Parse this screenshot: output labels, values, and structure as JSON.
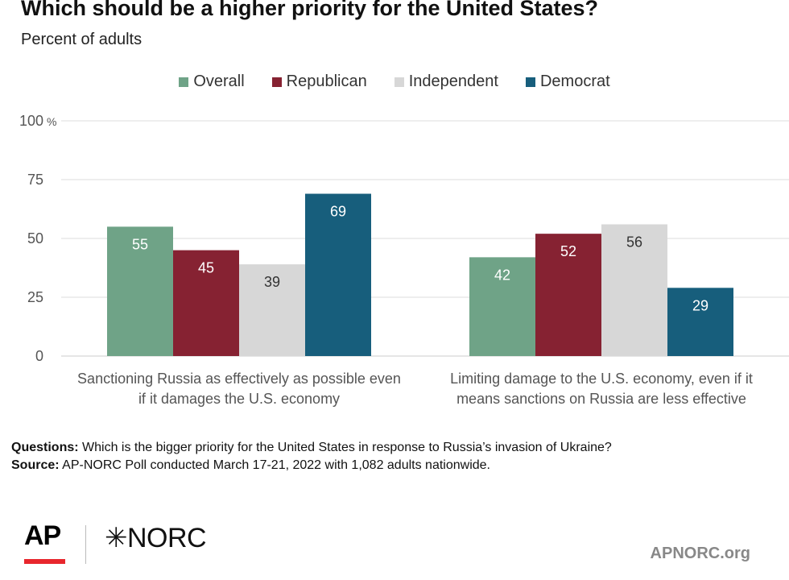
{
  "header": {
    "title": "Which should be a higher priority for the United States?",
    "subtitle": "Percent of adults"
  },
  "chart_data": {
    "type": "bar",
    "title": "Which should be a higher priority for the United States?",
    "subtitle": "Percent of adults",
    "categories": [
      [
        "Sanctioning Russia as effectively as possible even",
        "if it damages the U.S. economy"
      ],
      [
        "Limiting damage to the U.S. economy, even if it",
        "means sanctions on Russia are less effective"
      ]
    ],
    "series": [
      {
        "name": "Overall",
        "color": "#6fa387",
        "label_color": "#ffffff",
        "values": [
          55,
          42
        ]
      },
      {
        "name": "Republican",
        "color": "#862232",
        "label_color": "#ffffff",
        "values": [
          45,
          52
        ]
      },
      {
        "name": "Independent",
        "color": "#d7d7d7",
        "label_color": "#333333",
        "values": [
          39,
          56
        ]
      },
      {
        "name": "Democrat",
        "color": "#175e7c",
        "label_color": "#ffffff",
        "values": [
          69,
          29
        ]
      }
    ],
    "yticks": [
      "0",
      "25",
      "50",
      "75",
      "100"
    ],
    "ytick_values": [
      0,
      25,
      50,
      75,
      100
    ],
    "yunit": "%",
    "ylim": [
      0,
      100
    ],
    "xlabel": "",
    "ylabel": "",
    "grid": true,
    "legend": "top-center"
  },
  "notes": {
    "questions_label": "Questions:",
    "questions_text": "Which is the bigger priority for the United States in response to Russia’s invasion of Ukraine?",
    "source_label": "Source:",
    "source_text": "AP-NORC Poll conducted March 17-21, 2022 with 1,082 adults nationwide."
  },
  "footer": {
    "ap_logo": "AP",
    "norc_logo": "✳NORC",
    "site": "APNORC.org"
  },
  "colors": {
    "accent_red": "#e8262d",
    "grid": "#dddddd"
  }
}
